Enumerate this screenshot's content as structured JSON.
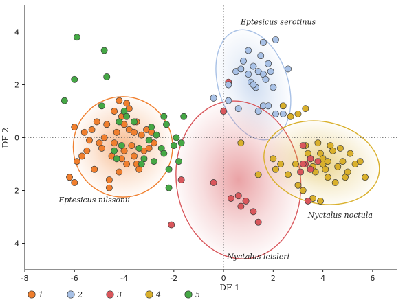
{
  "chart_data": {
    "type": "scatter",
    "xlabel": "DF 1",
    "ylabel": "DF 2",
    "xlim": [
      -8,
      7
    ],
    "ylim": [
      -5,
      5
    ],
    "xticks": [
      "-8",
      "-6",
      "-4",
      "-2",
      "0",
      "2",
      "4",
      "6"
    ],
    "yticks": [
      "-4",
      "-2",
      "0",
      "2",
      "4"
    ],
    "reference_lines": {
      "x": 0,
      "y": 0,
      "style": "dotted"
    },
    "grid": false,
    "legend_position": "bottom",
    "series": [
      {
        "name": "1",
        "color": "#f07f2e",
        "ellipse_label": "Eptesicus nilssonii",
        "points": [
          [
            -6.2,
            -1.5
          ],
          [
            -5.9,
            -0.9
          ],
          [
            -5.6,
            0.2
          ],
          [
            -5.5,
            -0.5
          ],
          [
            -5.3,
            0.3
          ],
          [
            -5.2,
            -1.2
          ],
          [
            -5.0,
            -0.2
          ],
          [
            -4.9,
            -0.4
          ],
          [
            -4.8,
            0.0
          ],
          [
            -4.7,
            0.5
          ],
          [
            -4.6,
            -1.6
          ],
          [
            -4.5,
            -0.7
          ],
          [
            -4.4,
            -0.2
          ],
          [
            -4.3,
            0.2
          ],
          [
            -4.2,
            -1.3
          ],
          [
            -4.2,
            1.4
          ],
          [
            -4.1,
            0.8
          ],
          [
            -4.0,
            -0.5
          ],
          [
            -4.0,
            0.5
          ],
          [
            -3.9,
            -1.0
          ],
          [
            -3.8,
            0.3
          ],
          [
            -3.7,
            -0.3
          ],
          [
            -3.6,
            0.2
          ],
          [
            -3.5,
            0.6
          ],
          [
            -3.5,
            -1.0
          ],
          [
            -3.3,
            0.1
          ],
          [
            -3.2,
            -0.5
          ],
          [
            -3.1,
            0.3
          ],
          [
            -3.0,
            -0.4
          ],
          [
            -2.9,
            0.2
          ],
          [
            -4.6,
            -1.9
          ],
          [
            -5.1,
            0.6
          ],
          [
            -4.4,
            1.0
          ],
          [
            -3.8,
            1.1
          ],
          [
            -6.0,
            -1.7
          ],
          [
            -5.4,
            -0.1
          ],
          [
            -3.4,
            -1.2
          ],
          [
            -2.8,
            -0.2
          ],
          [
            -4.1,
            -0.8
          ],
          [
            -5.7,
            -0.7
          ],
          [
            -6.0,
            0.4
          ],
          [
            -3.9,
            1.3
          ],
          [
            -3.6,
            -0.7
          ]
        ]
      },
      {
        "name": "2",
        "color": "#a8c1e6",
        "ellipse_label": "Eptesicus serotinus",
        "points": [
          [
            -0.4,
            1.5
          ],
          [
            0.2,
            2.0
          ],
          [
            0.5,
            2.5
          ],
          [
            0.7,
            2.6
          ],
          [
            0.8,
            2.9
          ],
          [
            1.0,
            2.4
          ],
          [
            1.1,
            2.1
          ],
          [
            1.2,
            2.7
          ],
          [
            1.3,
            1.9
          ],
          [
            1.4,
            2.5
          ],
          [
            1.5,
            3.1
          ],
          [
            1.6,
            2.4
          ],
          [
            1.7,
            2.2
          ],
          [
            1.8,
            2.8
          ],
          [
            1.9,
            2.5
          ],
          [
            2.0,
            1.9
          ],
          [
            2.1,
            3.7
          ],
          [
            1.6,
            1.2
          ],
          [
            1.8,
            1.2
          ],
          [
            2.1,
            0.9
          ],
          [
            2.4,
            0.9
          ],
          [
            2.6,
            2.6
          ],
          [
            1.6,
            3.6
          ],
          [
            1.4,
            1.0
          ],
          [
            0.6,
            1.1
          ],
          [
            1.0,
            3.3
          ],
          [
            0.2,
            1.4
          ],
          [
            1.2,
            2.0
          ]
        ]
      },
      {
        "name": "3",
        "color": "#d9575c",
        "ellipse_label": "Nyctalus leisleri",
        "points": [
          [
            0.2,
            2.1
          ],
          [
            0.0,
            1.0
          ],
          [
            -1.7,
            -1.6
          ],
          [
            -0.4,
            -1.7
          ],
          [
            0.3,
            -2.3
          ],
          [
            0.6,
            -2.2
          ],
          [
            0.9,
            -2.4
          ],
          [
            1.2,
            -2.8
          ],
          [
            1.4,
            -3.2
          ],
          [
            -2.1,
            -3.3
          ],
          [
            0.7,
            -2.6
          ],
          [
            3.2,
            -0.3
          ],
          [
            3.5,
            -0.8
          ],
          [
            3.8,
            -0.9
          ],
          [
            3.3,
            -1.0
          ],
          [
            3.5,
            -1.2
          ],
          [
            3.1,
            -1.3
          ],
          [
            3.4,
            -2.4
          ],
          [
            3.2,
            -1.0
          ]
        ]
      },
      {
        "name": "4",
        "color": "#d9b02c",
        "ellipse_label": "Nyctalus noctula",
        "points": [
          [
            2.4,
            1.2
          ],
          [
            2.7,
            0.8
          ],
          [
            3.0,
            0.9
          ],
          [
            3.3,
            1.1
          ],
          [
            3.3,
            -0.3
          ],
          [
            3.5,
            -0.8
          ],
          [
            3.6,
            -1.1
          ],
          [
            3.7,
            -1.3
          ],
          [
            3.8,
            -0.2
          ],
          [
            3.9,
            -0.6
          ],
          [
            4.0,
            -0.8
          ],
          [
            4.1,
            -1.2
          ],
          [
            4.2,
            -1.5
          ],
          [
            4.3,
            -0.3
          ],
          [
            4.5,
            -1.7
          ],
          [
            4.7,
            -0.4
          ],
          [
            4.8,
            -0.9
          ],
          [
            4.9,
            -1.5
          ],
          [
            5.0,
            -1.3
          ],
          [
            5.1,
            -0.6
          ],
          [
            5.3,
            -1.0
          ],
          [
            5.5,
            -0.9
          ],
          [
            5.7,
            -1.5
          ],
          [
            2.1,
            -1.2
          ],
          [
            2.3,
            -1.0
          ],
          [
            2.9,
            -1.0
          ],
          [
            3.0,
            -1.8
          ],
          [
            3.2,
            -2.0
          ],
          [
            3.6,
            -2.3
          ],
          [
            4.0,
            -1.0
          ],
          [
            4.4,
            -0.5
          ],
          [
            4.6,
            -1.1
          ],
          [
            2.0,
            -0.8
          ],
          [
            3.4,
            -0.6
          ],
          [
            3.9,
            -2.4
          ],
          [
            0.7,
            -0.2
          ],
          [
            1.4,
            -1.4
          ],
          [
            2.6,
            -1.4
          ],
          [
            4.2,
            -0.9
          ]
        ]
      },
      {
        "name": "5",
        "color": "#45a845",
        "ellipse_label": "",
        "points": [
          [
            -6.4,
            1.4
          ],
          [
            -5.9,
            3.8
          ],
          [
            -6.0,
            2.2
          ],
          [
            -4.8,
            3.3
          ],
          [
            -4.7,
            2.3
          ],
          [
            -4.9,
            1.2
          ],
          [
            -4.0,
            1.0
          ],
          [
            -3.9,
            0.8
          ],
          [
            -3.6,
            0.6
          ],
          [
            -3.4,
            -0.4
          ],
          [
            -3.2,
            -0.8
          ],
          [
            -3.0,
            -0.1
          ],
          [
            -2.9,
            0.4
          ],
          [
            -2.7,
            0.1
          ],
          [
            -2.5,
            -0.4
          ],
          [
            -2.4,
            -0.6
          ],
          [
            -2.3,
            0.5
          ],
          [
            -2.2,
            -1.2
          ],
          [
            -2.0,
            -0.3
          ],
          [
            -1.9,
            0.0
          ],
          [
            -1.8,
            -0.9
          ],
          [
            -1.7,
            -0.2
          ],
          [
            -1.6,
            0.8
          ],
          [
            -2.4,
            0.8
          ],
          [
            -4.3,
            -0.8
          ],
          [
            -4.2,
            0.6
          ],
          [
            -3.3,
            -1.0
          ],
          [
            -4.4,
            -0.5
          ],
          [
            -2.2,
            -1.9
          ],
          [
            -2.8,
            -0.9
          ],
          [
            -4.1,
            -0.3
          ]
        ]
      }
    ],
    "ellipses": [
      {
        "series": "1",
        "cx": -4.05,
        "cy": -0.35,
        "rx": 2.0,
        "ry": 1.9,
        "angle": 0
      },
      {
        "series": "2",
        "cx": 1.2,
        "cy": 2.0,
        "rx": 1.4,
        "ry": 2.15,
        "angle": 18
      },
      {
        "series": "3",
        "cx": 0.6,
        "cy": -1.6,
        "rx": 2.5,
        "ry": 3.0,
        "angle": 8
      },
      {
        "series": "4",
        "cx": 3.95,
        "cy": -0.95,
        "rx": 2.35,
        "ry": 1.55,
        "angle": -12
      }
    ]
  }
}
